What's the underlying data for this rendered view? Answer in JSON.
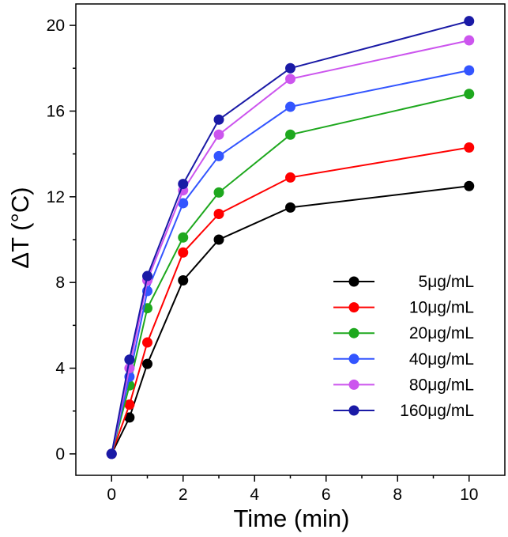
{
  "chart_data": {
    "type": "line",
    "xlabel": "Time (min)",
    "ylabel": "ΔT (°C)",
    "xlim": [
      -1,
      11
    ],
    "ylim": [
      -1,
      21
    ],
    "xticks": [
      0,
      2,
      4,
      6,
      8,
      10
    ],
    "yticks": [
      0,
      4,
      8,
      12,
      16,
      20
    ],
    "grid": false,
    "legend_position": "bottom-right",
    "x": [
      0,
      0.5,
      1,
      2,
      3,
      5,
      10
    ],
    "series": [
      {
        "name": "5μg/mL",
        "color": "#000000",
        "values": [
          0,
          1.7,
          4.2,
          8.1,
          10.0,
          11.5,
          12.5
        ]
      },
      {
        "name": "10μg/mL",
        "color": "#ff0000",
        "values": [
          0,
          2.3,
          5.2,
          9.4,
          11.2,
          12.9,
          14.3
        ]
      },
      {
        "name": "20μg/mL",
        "color": "#1ea81e",
        "values": [
          0,
          3.2,
          6.8,
          10.1,
          12.2,
          14.9,
          16.8
        ]
      },
      {
        "name": "40μg/mL",
        "color": "#3355ff",
        "values": [
          0,
          3.6,
          7.6,
          11.7,
          13.9,
          16.2,
          17.9
        ]
      },
      {
        "name": "80μg/mL",
        "color": "#cc55ee",
        "values": [
          0,
          4.0,
          8.1,
          12.3,
          14.9,
          17.5,
          19.3
        ]
      },
      {
        "name": "160μg/mL",
        "color": "#1a1aa6",
        "values": [
          0,
          4.4,
          8.3,
          12.6,
          15.6,
          18.0,
          20.2
        ]
      }
    ]
  }
}
